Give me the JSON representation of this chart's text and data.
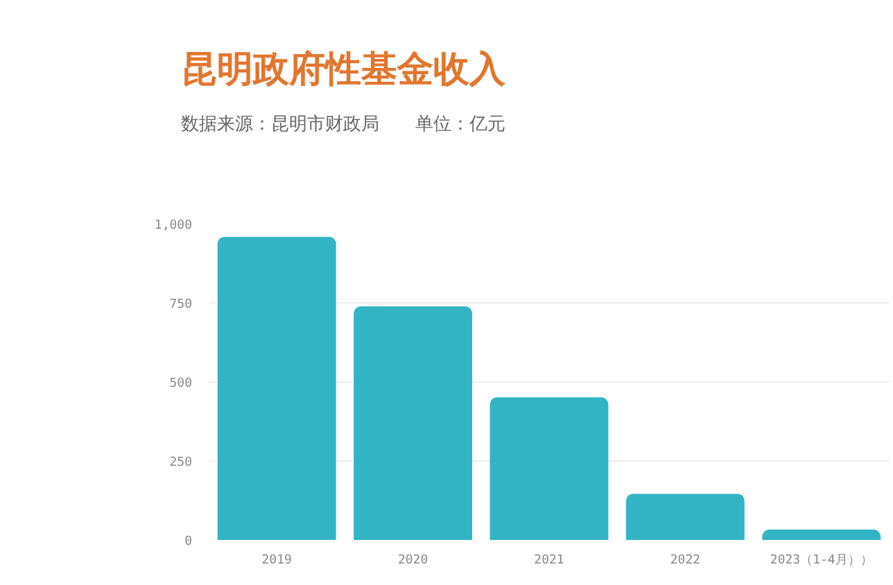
{
  "chart_data": {
    "type": "bar",
    "title": "昆明政府性基金收入",
    "subtitle": "数据来源：昆明市财政局　　单位：亿元",
    "categories": [
      "2019",
      "2020",
      "2021",
      "2022",
      "2023（1-4月））"
    ],
    "values": [
      959,
      739,
      451,
      146,
      33
    ],
    "color": "#33b4c5",
    "ylim": [
      0,
      1000
    ],
    "yticks": [
      0,
      250,
      500,
      750,
      {
        "value": 1000,
        "label": "1,000"
      }
    ],
    "grid": "y"
  }
}
